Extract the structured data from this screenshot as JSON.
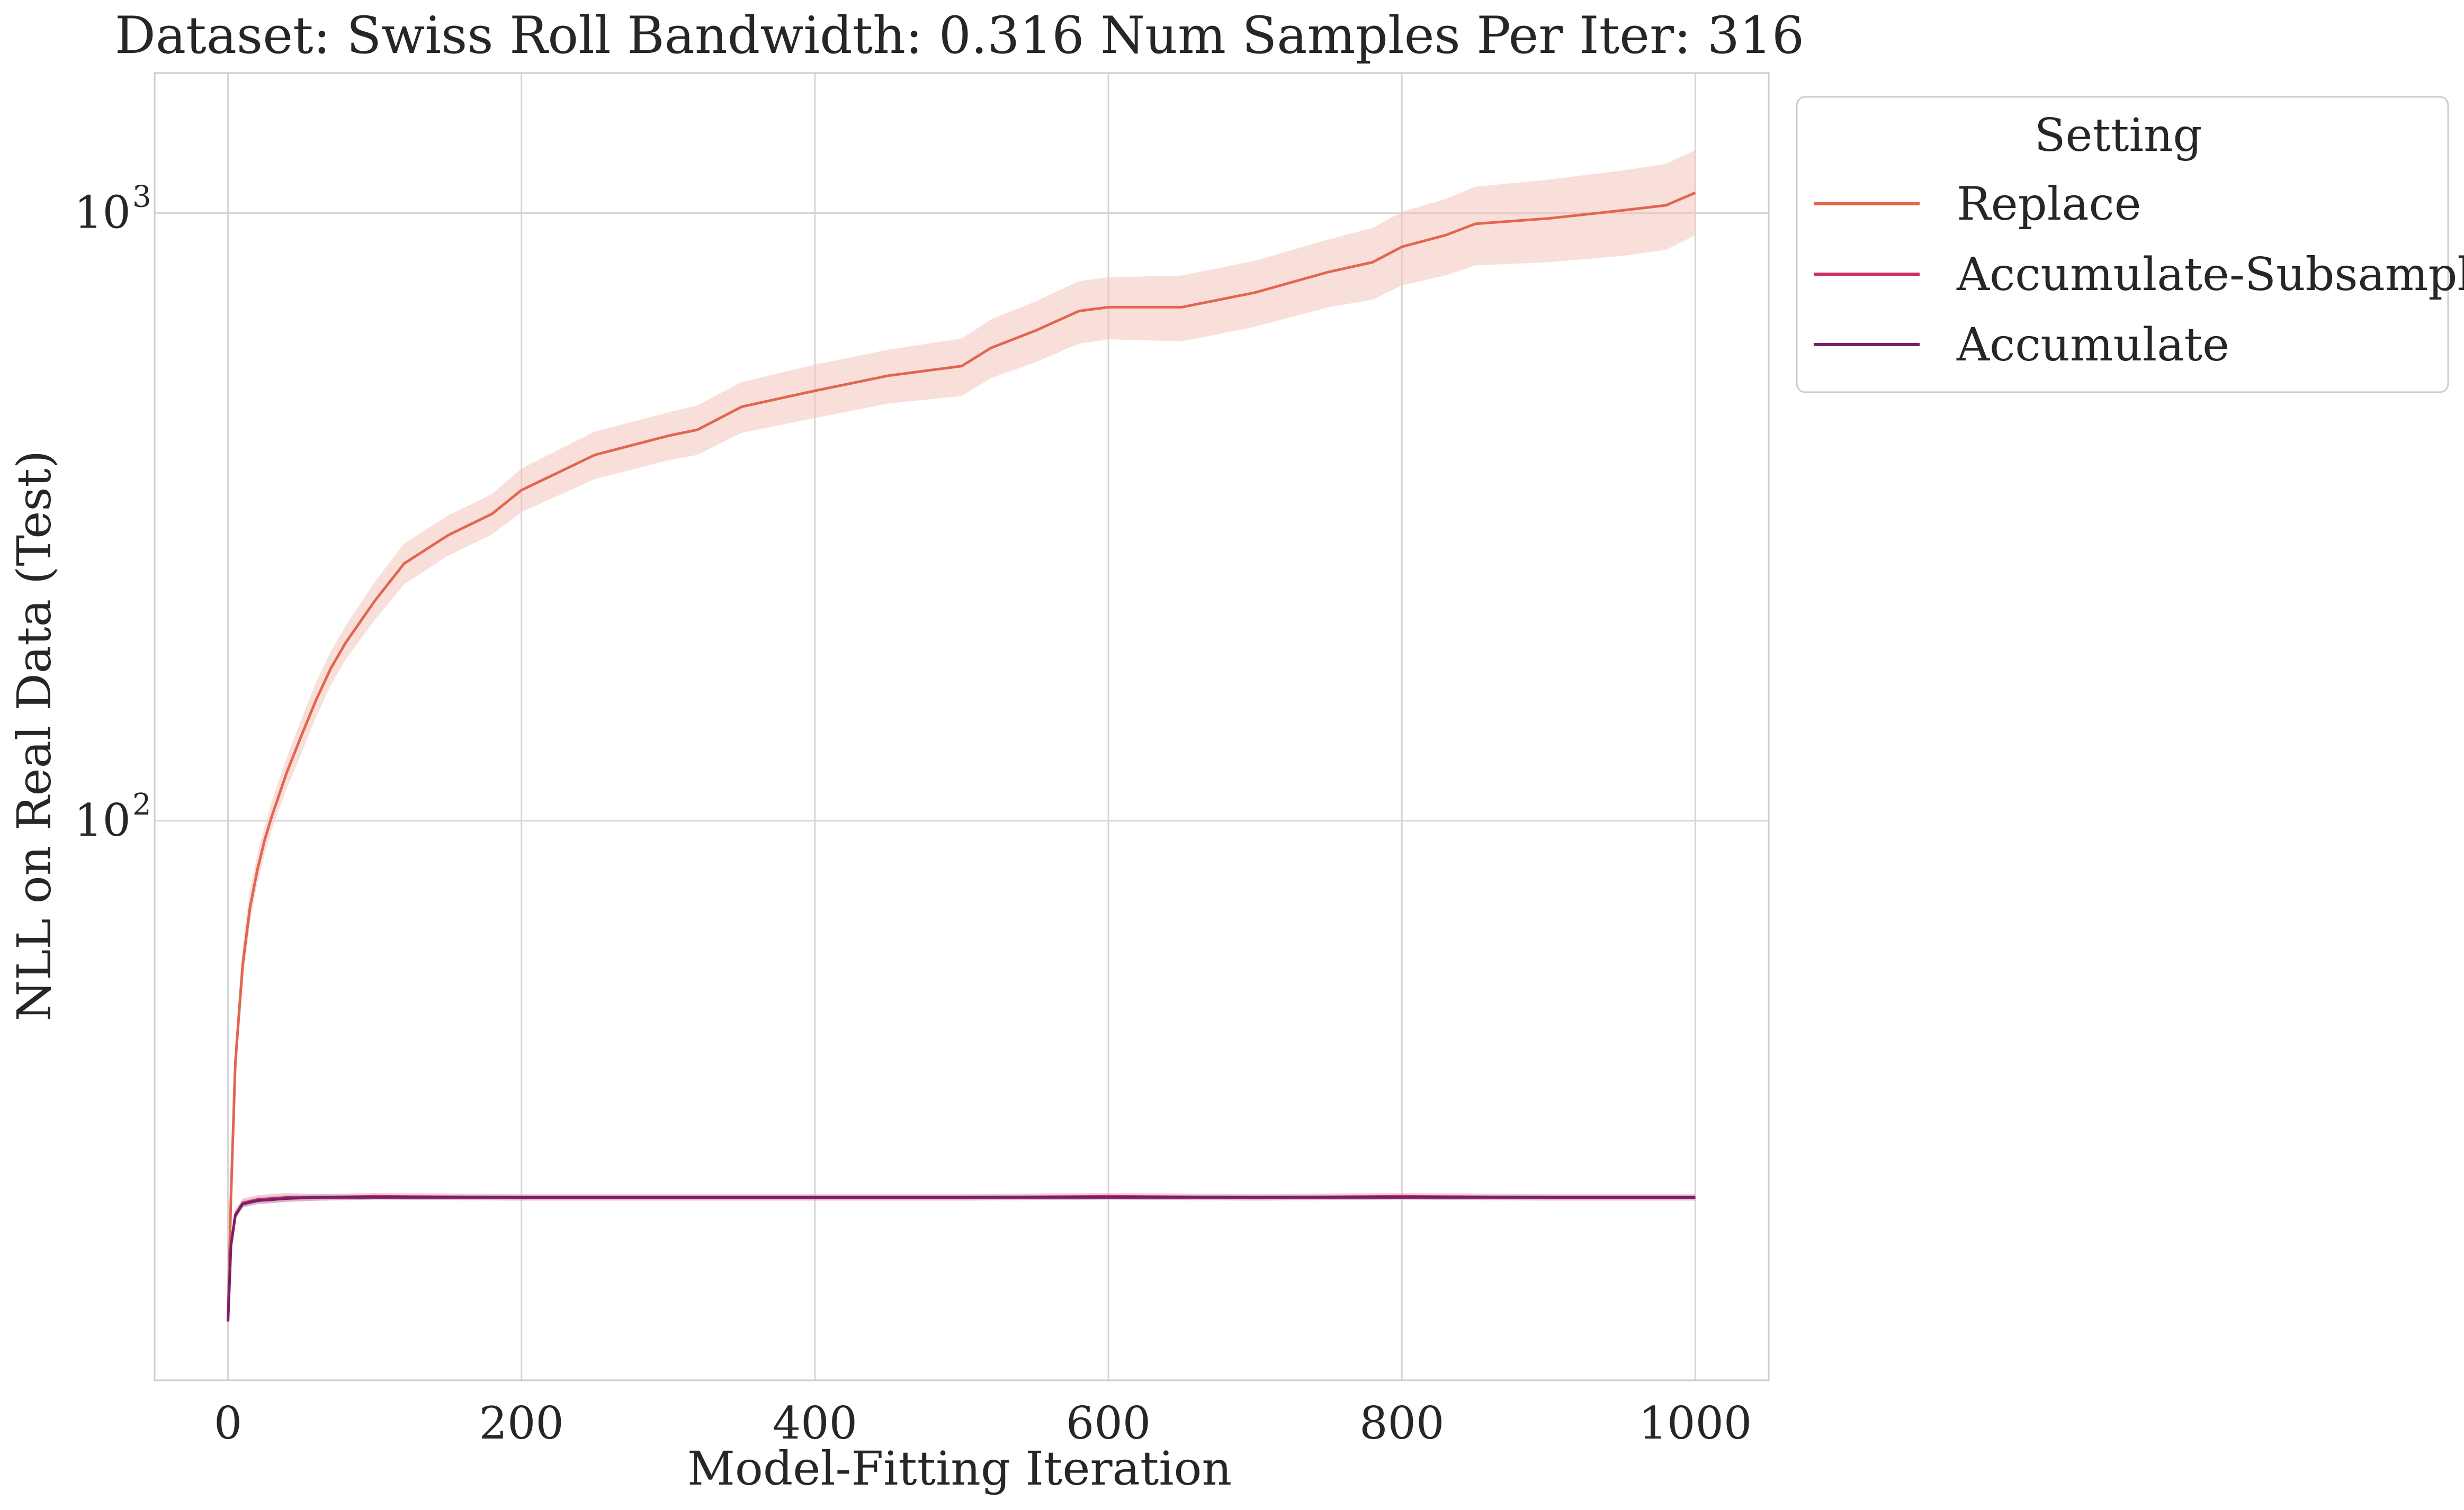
{
  "chart_data": {
    "type": "line",
    "title": "Dataset: Swiss Roll Bandwidth: 0.316 Num Samples Per Iter: 316",
    "xlabel": "Model-Fitting Iteration",
    "ylabel": "NLL on Real Data (Test)",
    "xlim": [
      -50,
      1050
    ],
    "ylim": [
      12,
      1700
    ],
    "yscale": "log",
    "grid": true,
    "x_ticks": [
      0,
      200,
      400,
      600,
      800,
      1000
    ],
    "x_tick_labels": [
      "0",
      "200",
      "400",
      "600",
      "800",
      "1000"
    ],
    "y_ticks": [
      100,
      1000
    ],
    "y_tick_labels": [
      {
        "base": "10",
        "exp": "2"
      },
      {
        "base": "10",
        "exp": "3"
      }
    ],
    "legend": {
      "title": "Setting",
      "placement": "outside-upper-right",
      "entries": [
        "Replace",
        "Accumulate-Subsample",
        "Accumulate"
      ]
    },
    "series": [
      {
        "name": "Replace",
        "color": "#e2664f",
        "band_color": "#f4c4bb",
        "x": [
          0,
          2,
          5,
          10,
          15,
          20,
          25,
          30,
          40,
          50,
          60,
          70,
          80,
          100,
          120,
          150,
          180,
          200,
          250,
          300,
          320,
          350,
          400,
          450,
          500,
          520,
          550,
          580,
          600,
          650,
          700,
          750,
          780,
          800,
          830,
          850,
          900,
          950,
          980,
          1000
        ],
        "y": [
          15,
          24,
          40,
          58,
          72,
          83,
          93,
          102,
          120,
          138,
          158,
          178,
          196,
          230,
          265,
          295,
          320,
          350,
          400,
          430,
          440,
          480,
          510,
          540,
          560,
          600,
          640,
          690,
          700,
          700,
          740,
          800,
          830,
          880,
          920,
          960,
          980,
          1010,
          1030,
          1080
        ],
        "lower": [
          14,
          22,
          37,
          54,
          68,
          79,
          88,
          97,
          113,
          129,
          148,
          167,
          184,
          214,
          245,
          273,
          296,
          322,
          365,
          392,
          400,
          435,
          460,
          486,
          500,
          535,
          568,
          610,
          620,
          615,
          650,
          700,
          720,
          760,
          790,
          820,
          830,
          850,
          870,
          920
        ],
        "upper": [
          16,
          26,
          43,
          62,
          77,
          88,
          98,
          108,
          127,
          147,
          169,
          190,
          209,
          247,
          286,
          318,
          345,
          380,
          437,
          470,
          483,
          527,
          563,
          596,
          622,
          668,
          715,
          773,
          784,
          789,
          835,
          905,
          945,
          1005,
          1055,
          1105,
          1135,
          1175,
          1205,
          1270
        ]
      },
      {
        "name": "Accumulate-Subsample",
        "color": "#c9325f",
        "band_color": "#eaa3b8",
        "x": [
          0,
          2,
          5,
          10,
          20,
          40,
          60,
          100,
          200,
          300,
          400,
          500,
          600,
          700,
          800,
          900,
          1000
        ],
        "y": [
          15,
          20,
          22.5,
          23.5,
          23.8,
          24.0,
          24.0,
          24.1,
          24.0,
          24.0,
          24.0,
          24.0,
          24.1,
          24.0,
          24.1,
          24.0,
          24.0
        ],
        "lower": [
          14.7,
          19.6,
          22.1,
          23.1,
          23.4,
          23.6,
          23.7,
          23.8,
          23.7,
          23.7,
          23.7,
          23.7,
          23.8,
          23.7,
          23.8,
          23.7,
          23.7
        ],
        "upper": [
          15.3,
          20.4,
          22.9,
          23.9,
          24.2,
          24.4,
          24.3,
          24.4,
          24.3,
          24.3,
          24.3,
          24.3,
          24.4,
          24.3,
          24.4,
          24.3,
          24.3
        ]
      },
      {
        "name": "Accumulate",
        "color": "#7b1f6a",
        "band_color": "#c79bbd",
        "x": [
          0,
          2,
          5,
          10,
          20,
          40,
          60,
          100,
          200,
          300,
          400,
          500,
          600,
          700,
          800,
          900,
          1000
        ],
        "y": [
          15,
          20,
          22.4,
          23.4,
          23.7,
          23.9,
          24.0,
          24.0,
          24.0,
          24.0,
          24.0,
          24.0,
          24.0,
          24.0,
          24.0,
          24.0,
          24.0
        ],
        "lower": [
          14.8,
          19.7,
          22.1,
          23.1,
          23.4,
          23.6,
          23.7,
          23.8,
          23.8,
          23.8,
          23.8,
          23.8,
          23.8,
          23.8,
          23.8,
          23.8,
          23.8
        ],
        "upper": [
          15.2,
          20.3,
          22.7,
          23.7,
          24.0,
          24.2,
          24.3,
          24.2,
          24.2,
          24.2,
          24.2,
          24.2,
          24.2,
          24.2,
          24.2,
          24.2,
          24.2
        ]
      }
    ]
  }
}
